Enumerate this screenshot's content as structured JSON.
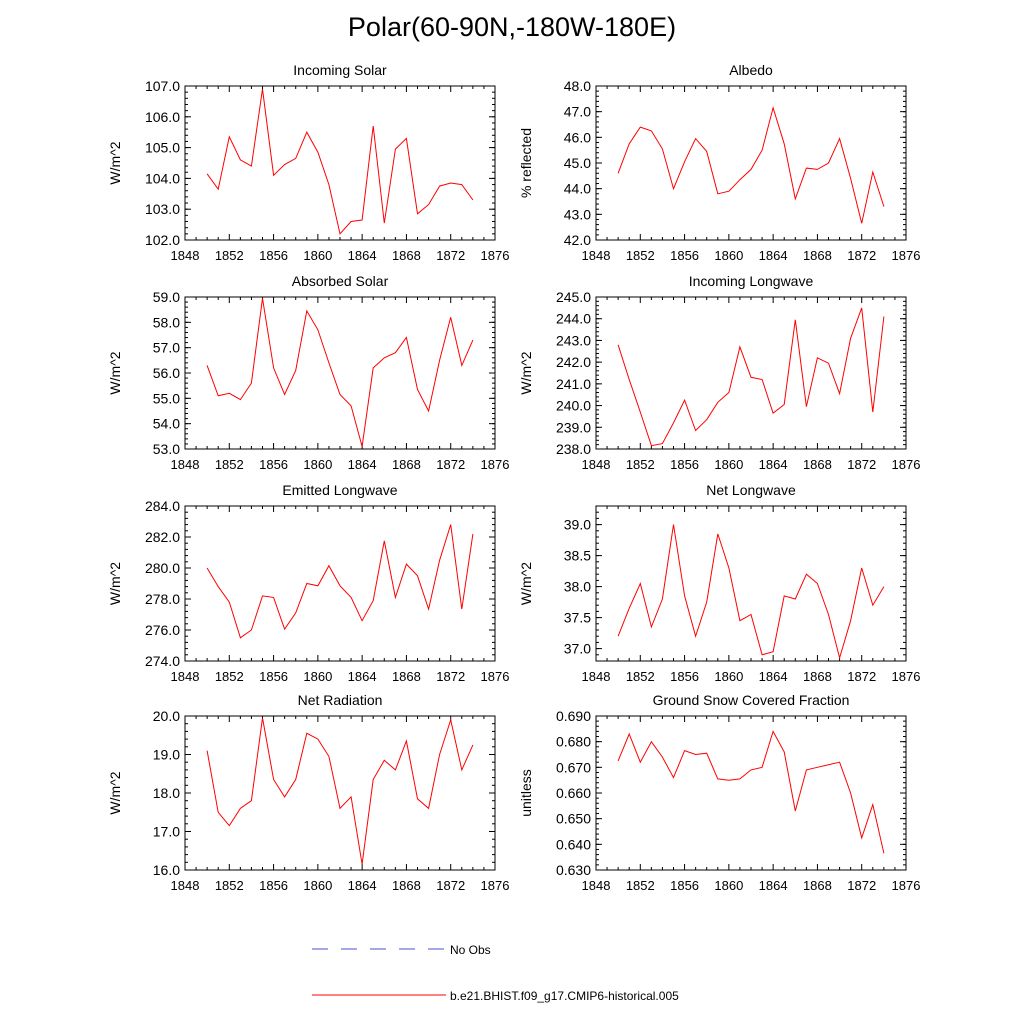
{
  "page_title": "Polar(60-90N,-180W-180E)",
  "legend": {
    "items": [
      {
        "label": "No Obs",
        "style": "dashed",
        "color": "#4a52c8"
      },
      {
        "label": "b.e21.BHIST.f09_g17.CMIP6-historical.005",
        "style": "solid",
        "color": "#ff0000"
      }
    ]
  },
  "chart_data": [
    {
      "type": "line",
      "title": "Incoming Solar",
      "ylabel": "W/m^2",
      "xlabel": "",
      "xlim": [
        1848,
        1876
      ],
      "ylim": [
        102.0,
        107.0
      ],
      "xticks": [
        "1848",
        "1852",
        "1856",
        "1860",
        "1864",
        "1868",
        "1872",
        "1876"
      ],
      "yticks": [
        "102.0",
        "103.0",
        "104.0",
        "105.0",
        "106.0",
        "107.0"
      ],
      "series": [
        {
          "name": "b.e21.BHIST.f09_g17.CMIP6-historical.005",
          "color": "#ff0000",
          "x": [
            1850,
            1851,
            1852,
            1853,
            1854,
            1855,
            1856,
            1857,
            1858,
            1859,
            1860,
            1861,
            1862,
            1863,
            1864,
            1865,
            1866,
            1867,
            1868,
            1869,
            1870,
            1871,
            1872,
            1873,
            1874
          ],
          "y": [
            104.15,
            103.65,
            105.35,
            104.6,
            104.4,
            106.9,
            104.1,
            104.45,
            104.65,
            105.5,
            104.85,
            103.8,
            102.2,
            102.6,
            102.65,
            105.7,
            102.55,
            104.95,
            105.3,
            102.85,
            103.15,
            103.75,
            103.85,
            103.8,
            103.3
          ]
        }
      ]
    },
    {
      "type": "line",
      "title": "Albedo",
      "ylabel": "% reflected",
      "xlabel": "",
      "xlim": [
        1848,
        1876
      ],
      "ylim": [
        42.0,
        48.0
      ],
      "xticks": [
        "1848",
        "1852",
        "1856",
        "1860",
        "1864",
        "1868",
        "1872",
        "1876"
      ],
      "yticks": [
        "42.0",
        "43.0",
        "44.0",
        "45.0",
        "46.0",
        "47.0",
        "48.0"
      ],
      "series": [
        {
          "name": "b.e21.BHIST.f09_g17.CMIP6-historical.005",
          "color": "#ff0000",
          "x": [
            1850,
            1851,
            1852,
            1853,
            1854,
            1855,
            1856,
            1857,
            1858,
            1859,
            1860,
            1861,
            1862,
            1863,
            1864,
            1865,
            1866,
            1867,
            1868,
            1869,
            1870,
            1871,
            1872,
            1873,
            1874
          ],
          "y": [
            44.6,
            45.75,
            46.4,
            46.25,
            45.55,
            44.0,
            45.05,
            45.95,
            45.45,
            43.8,
            43.9,
            44.35,
            44.75,
            45.5,
            47.15,
            45.75,
            43.6,
            44.8,
            44.75,
            45.0,
            45.95,
            44.4,
            42.65,
            44.65,
            43.3
          ]
        }
      ]
    },
    {
      "type": "line",
      "title": "Absorbed Solar",
      "ylabel": "W/m^2",
      "xlabel": "",
      "xlim": [
        1848,
        1876
      ],
      "ylim": [
        53.0,
        59.0
      ],
      "xticks": [
        "1848",
        "1852",
        "1856",
        "1860",
        "1864",
        "1868",
        "1872",
        "1876"
      ],
      "yticks": [
        "53.0",
        "54.0",
        "55.0",
        "56.0",
        "57.0",
        "58.0",
        "59.0"
      ],
      "series": [
        {
          "name": "b.e21.BHIST.f09_g17.CMIP6-historical.005",
          "color": "#ff0000",
          "x": [
            1850,
            1851,
            1852,
            1853,
            1854,
            1855,
            1856,
            1857,
            1858,
            1859,
            1860,
            1861,
            1862,
            1863,
            1864,
            1865,
            1866,
            1867,
            1868,
            1869,
            1870,
            1871,
            1872,
            1873,
            1874
          ],
          "y": [
            56.3,
            55.1,
            55.2,
            54.95,
            55.6,
            58.95,
            56.2,
            55.15,
            56.1,
            58.45,
            57.7,
            56.4,
            55.15,
            54.7,
            53.1,
            56.2,
            56.6,
            56.8,
            57.4,
            55.35,
            54.5,
            56.5,
            58.2,
            56.3,
            57.3
          ]
        }
      ]
    },
    {
      "type": "line",
      "title": "Incoming Longwave",
      "ylabel": "W/m^2",
      "xlabel": "",
      "xlim": [
        1848,
        1876
      ],
      "ylim": [
        238.0,
        245.0
      ],
      "xticks": [
        "1848",
        "1852",
        "1856",
        "1860",
        "1864",
        "1868",
        "1872",
        "1876"
      ],
      "yticks": [
        "238.0",
        "239.0",
        "240.0",
        "241.0",
        "242.0",
        "243.0",
        "244.0",
        "245.0"
      ],
      "series": [
        {
          "name": "b.e21.BHIST.f09_g17.CMIP6-historical.005",
          "color": "#ff0000",
          "x": [
            1850,
            1851,
            1852,
            1853,
            1854,
            1855,
            1856,
            1857,
            1858,
            1859,
            1860,
            1861,
            1862,
            1863,
            1864,
            1865,
            1866,
            1867,
            1868,
            1869,
            1870,
            1871,
            1872,
            1873,
            1874
          ],
          "y": [
            242.8,
            241.2,
            239.7,
            238.15,
            238.25,
            239.2,
            240.25,
            238.85,
            239.35,
            240.15,
            240.6,
            242.7,
            241.3,
            241.2,
            239.65,
            240.05,
            243.95,
            239.95,
            242.2,
            241.95,
            240.55,
            243.1,
            244.5,
            239.7,
            244.1
          ]
        }
      ]
    },
    {
      "type": "line",
      "title": "Emitted Longwave",
      "ylabel": "W/m^2",
      "xlabel": "",
      "xlim": [
        1848,
        1876
      ],
      "ylim": [
        274.0,
        284.0
      ],
      "xticks": [
        "1848",
        "1852",
        "1856",
        "1860",
        "1864",
        "1868",
        "1872",
        "1876"
      ],
      "yticks": [
        "274.0",
        "276.0",
        "278.0",
        "280.0",
        "282.0",
        "284.0"
      ],
      "series": [
        {
          "name": "b.e21.BHIST.f09_g17.CMIP6-historical.005",
          "color": "#ff0000",
          "x": [
            1850,
            1851,
            1852,
            1853,
            1854,
            1855,
            1856,
            1857,
            1858,
            1859,
            1860,
            1861,
            1862,
            1863,
            1864,
            1865,
            1866,
            1867,
            1868,
            1869,
            1870,
            1871,
            1872,
            1873,
            1874
          ],
          "y": [
            280.0,
            278.8,
            277.8,
            275.5,
            276.0,
            278.2,
            278.1,
            276.05,
            277.1,
            279.0,
            278.85,
            280.15,
            278.85,
            278.1,
            276.6,
            277.9,
            281.75,
            278.1,
            280.25,
            279.5,
            277.35,
            280.5,
            282.8,
            277.35,
            282.2
          ]
        }
      ]
    },
    {
      "type": "line",
      "title": "Net Longwave",
      "ylabel": "W/m^2",
      "xlabel": "",
      "xlim": [
        1848,
        1876
      ],
      "ylim": [
        36.8,
        39.3
      ],
      "xticks": [
        "1848",
        "1852",
        "1856",
        "1860",
        "1864",
        "1868",
        "1872",
        "1876"
      ],
      "yticks": [
        "37.0",
        "37.5",
        "38.0",
        "38.5",
        "39.0"
      ],
      "series": [
        {
          "name": "b.e21.BHIST.f09_g17.CMIP6-historical.005",
          "color": "#ff0000",
          "x": [
            1850,
            1851,
            1852,
            1853,
            1854,
            1855,
            1856,
            1857,
            1858,
            1859,
            1860,
            1861,
            1862,
            1863,
            1864,
            1865,
            1866,
            1867,
            1868,
            1869,
            1870,
            1871,
            1872,
            1873,
            1874
          ],
          "y": [
            37.2,
            37.65,
            38.05,
            37.35,
            37.8,
            39.0,
            37.85,
            37.2,
            37.75,
            38.85,
            38.3,
            37.45,
            37.55,
            36.9,
            36.95,
            37.85,
            37.8,
            38.2,
            38.05,
            37.55,
            36.85,
            37.45,
            38.3,
            37.7,
            38.0
          ]
        }
      ]
    },
    {
      "type": "line",
      "title": "Net Radiation",
      "ylabel": "W/m^2",
      "xlabel": "",
      "xlim": [
        1848,
        1876
      ],
      "ylim": [
        16.0,
        20.0
      ],
      "xticks": [
        "1848",
        "1852",
        "1856",
        "1860",
        "1864",
        "1868",
        "1872",
        "1876"
      ],
      "yticks": [
        "16.0",
        "17.0",
        "18.0",
        "19.0",
        "20.0"
      ],
      "series": [
        {
          "name": "b.e21.BHIST.f09_g17.CMIP6-historical.005",
          "color": "#ff0000",
          "x": [
            1850,
            1851,
            1852,
            1853,
            1854,
            1855,
            1856,
            1857,
            1858,
            1859,
            1860,
            1861,
            1862,
            1863,
            1864,
            1865,
            1866,
            1867,
            1868,
            1869,
            1870,
            1871,
            1872,
            1873,
            1874
          ],
          "y": [
            19.1,
            17.5,
            17.15,
            17.6,
            17.8,
            19.95,
            18.35,
            17.9,
            18.35,
            19.55,
            19.4,
            18.95,
            17.6,
            17.9,
            16.15,
            18.35,
            18.85,
            18.6,
            19.35,
            17.85,
            17.6,
            19.0,
            19.9,
            18.6,
            19.25
          ]
        }
      ]
    },
    {
      "type": "line",
      "title": "Ground Snow Covered Fraction",
      "ylabel": "unitless",
      "xlabel": "",
      "xlim": [
        1848,
        1876
      ],
      "ylim": [
        0.63,
        0.69
      ],
      "xticks": [
        "1848",
        "1852",
        "1856",
        "1860",
        "1864",
        "1868",
        "1872",
        "1876"
      ],
      "yticks": [
        "0.630",
        "0.640",
        "0.650",
        "0.660",
        "0.670",
        "0.680",
        "0.690"
      ],
      "series": [
        {
          "name": "b.e21.BHIST.f09_g17.CMIP6-historical.005",
          "color": "#ff0000",
          "x": [
            1850,
            1851,
            1852,
            1853,
            1854,
            1855,
            1856,
            1857,
            1858,
            1859,
            1860,
            1861,
            1862,
            1863,
            1864,
            1865,
            1866,
            1867,
            1868,
            1869,
            1870,
            1871,
            1872,
            1873,
            1874
          ],
          "y": [
            0.6725,
            0.683,
            0.672,
            0.68,
            0.674,
            0.666,
            0.6765,
            0.675,
            0.6755,
            0.6655,
            0.665,
            0.6655,
            0.669,
            0.67,
            0.684,
            0.676,
            0.653,
            0.669,
            0.67,
            0.671,
            0.672,
            0.66,
            0.6425,
            0.6555,
            0.6365
          ]
        }
      ]
    }
  ]
}
